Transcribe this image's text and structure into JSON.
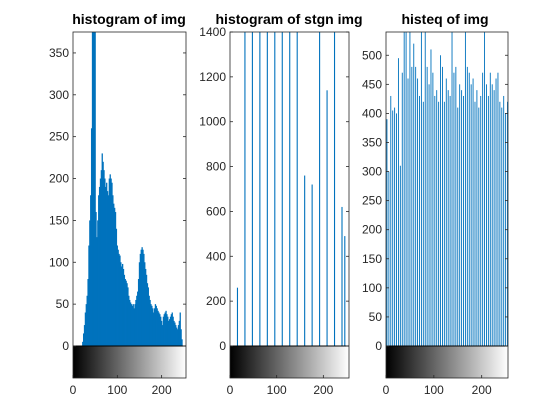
{
  "chart_data": [
    {
      "type": "bar",
      "title": "histogram of img",
      "xlim": [
        0,
        255
      ],
      "ylim": [
        0,
        375
      ],
      "xticks": [
        0,
        100,
        200
      ],
      "yticks": [
        0,
        50,
        100,
        150,
        200,
        250,
        300,
        350
      ],
      "bar_color": "#0072bd",
      "colorbar": "gray",
      "x": [
        22,
        24,
        26,
        28,
        30,
        32,
        34,
        36,
        38,
        40,
        42,
        44,
        46,
        48,
        50,
        52,
        54,
        56,
        58,
        60,
        62,
        64,
        66,
        68,
        70,
        72,
        74,
        76,
        78,
        80,
        82,
        84,
        86,
        88,
        90,
        92,
        94,
        96,
        98,
        100,
        102,
        104,
        106,
        108,
        110,
        112,
        114,
        116,
        118,
        120,
        122,
        124,
        126,
        128,
        130,
        132,
        134,
        136,
        138,
        140,
        142,
        144,
        146,
        148,
        150,
        152,
        154,
        156,
        158,
        160,
        162,
        164,
        166,
        168,
        170,
        172,
        174,
        176,
        178,
        180,
        182,
        184,
        186,
        188,
        190,
        192,
        194,
        196,
        198,
        200,
        202,
        204,
        206,
        208,
        210,
        212,
        214,
        216,
        218,
        220,
        222,
        224,
        226,
        228,
        230,
        232,
        234,
        236,
        238,
        240,
        242,
        244,
        246
      ],
      "values": [
        5,
        15,
        25,
        40,
        50,
        60,
        80,
        120,
        150,
        180,
        260,
        400,
        400,
        400,
        400,
        160,
        130,
        150,
        180,
        190,
        200,
        210,
        230,
        220,
        210,
        200,
        190,
        195,
        185,
        180,
        200,
        205,
        200,
        195,
        180,
        170,
        165,
        160,
        140,
        120,
        115,
        110,
        108,
        100,
        95,
        98,
        92,
        85,
        80,
        78,
        75,
        70,
        60,
        55,
        52,
        50,
        48,
        50,
        45,
        50,
        55,
        60,
        65,
        80,
        100,
        110,
        115,
        118,
        115,
        110,
        100,
        92,
        85,
        75,
        70,
        60,
        55,
        50,
        48,
        45,
        40,
        45,
        50,
        48,
        45,
        42,
        40,
        38,
        35,
        30,
        25,
        35,
        38,
        40,
        42,
        38,
        35,
        30,
        32,
        35,
        38,
        40,
        35,
        30,
        28,
        25,
        22,
        20,
        25,
        30,
        40,
        20,
        8
      ]
    },
    {
      "type": "bar",
      "title": "histogram of stgn img",
      "xlim": [
        0,
        255
      ],
      "ylim": [
        0,
        1400
      ],
      "xticks": [
        0,
        100,
        200
      ],
      "yticks": [
        0,
        200,
        400,
        600,
        800,
        1000,
        1200,
        1400
      ],
      "bar_color": "#0072bd",
      "colorbar": "gray",
      "x": [
        16,
        32,
        48,
        64,
        80,
        96,
        112,
        128,
        144,
        160,
        176,
        192,
        208,
        224,
        240,
        246
      ],
      "values": [
        260,
        1400,
        1400,
        1400,
        1400,
        1400,
        1400,
        1400,
        1400,
        760,
        720,
        1400,
        1140,
        1400,
        620,
        490
      ]
    },
    {
      "type": "bar",
      "title": "histeq of img",
      "xlim": [
        0,
        255
      ],
      "ylim": [
        0,
        540
      ],
      "xticks": [
        0,
        100,
        200
      ],
      "yticks": [
        0,
        50,
        100,
        150,
        200,
        250,
        300,
        350,
        400,
        450,
        500
      ],
      "bar_color": "#0072bd",
      "colorbar": "gray",
      "x": [
        2,
        6,
        10,
        14,
        18,
        22,
        26,
        30,
        34,
        38,
        42,
        46,
        50,
        54,
        58,
        62,
        66,
        70,
        74,
        78,
        82,
        86,
        90,
        94,
        98,
        102,
        106,
        110,
        114,
        118,
        122,
        126,
        130,
        134,
        138,
        142,
        146,
        150,
        154,
        158,
        162,
        166,
        170,
        174,
        178,
        182,
        186,
        190,
        194,
        198,
        202,
        206,
        210,
        214,
        218,
        222,
        226,
        230,
        234,
        238,
        242,
        246,
        250,
        254
      ],
      "values": [
        390,
        300,
        430,
        405,
        410,
        400,
        495,
        310,
        470,
        540,
        540,
        460,
        540,
        480,
        520,
        480,
        460,
        430,
        540,
        420,
        540,
        480,
        450,
        510,
        470,
        430,
        440,
        420,
        500,
        480,
        420,
        460,
        440,
        430,
        540,
        470,
        480,
        410,
        450,
        440,
        430,
        540,
        480,
        470,
        450,
        460,
        420,
        440,
        410,
        430,
        470,
        540,
        450,
        430,
        470,
        450,
        440,
        460,
        470,
        420,
        410,
        430,
        400,
        420
      ]
    }
  ]
}
